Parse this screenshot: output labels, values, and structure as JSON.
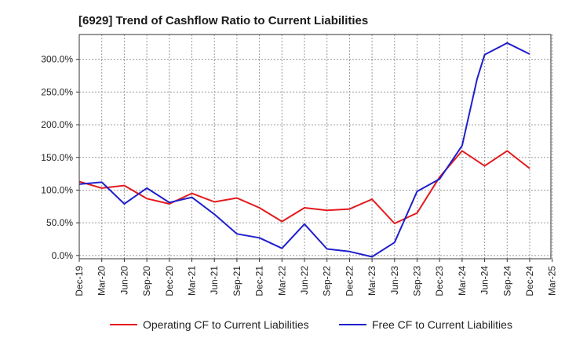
{
  "chart_data": {
    "type": "line",
    "title": "[6929]  Trend of Cashflow Ratio to Current Liabilities",
    "xlabel": "",
    "ylabel": "",
    "x_tick_labels": [
      "Dec-19",
      "Mar-20",
      "Jun-20",
      "Sep-20",
      "Dec-20",
      "Mar-21",
      "Jun-21",
      "Sep-21",
      "Dec-21",
      "Mar-22",
      "Jun-22",
      "Sep-22",
      "Dec-22",
      "Mar-23",
      "Jun-23",
      "Sep-23",
      "Dec-23",
      "Mar-24",
      "Jun-24",
      "Sep-24",
      "Dec-24",
      "Mar-25"
    ],
    "y_ticks": [
      0,
      50,
      100,
      150,
      200,
      250,
      300
    ],
    "y_tick_labels": [
      "0.0%",
      "50.0%",
      "100.0%",
      "150.0%",
      "200.0%",
      "250.0%",
      "300.0%"
    ],
    "ylim": [
      -5,
      338
    ],
    "grid": true,
    "legend_position": "bottom",
    "series": [
      {
        "name": "Operating CF to Current Liabilities",
        "color": "#e31a1c",
        "x": [
          "Dec-19",
          "Mar-20",
          "Jun-20",
          "Sep-20",
          "Dec-20",
          "Mar-21",
          "Jun-21",
          "Sep-21",
          "Dec-21",
          "Mar-22",
          "Jun-22",
          "Sep-22",
          "Dec-22",
          "Mar-23",
          "Jun-23",
          "Sep-23",
          "Dec-23",
          "Mar-24",
          "Jun-24",
          "Sep-24",
          "Dec-24"
        ],
        "values": [
          113,
          103,
          107,
          87,
          79,
          95,
          82,
          88,
          73,
          52,
          73,
          69,
          71,
          86,
          49,
          65,
          120,
          160,
          137,
          160,
          133
        ]
      },
      {
        "name": "Free CF to Current Liabilities",
        "color": "#1f1fcc",
        "x": [
          "Dec-19",
          "Mar-20",
          "Jun-20",
          "Sep-20",
          "Dec-20",
          "Mar-21",
          "Jun-21",
          "Sep-21",
          "Dec-21",
          "Mar-22",
          "Jun-22",
          "Sep-22",
          "Dec-22",
          "Mar-23",
          "Jun-23",
          "Sep-23",
          "Dec-23",
          "Mar-24",
          "May-24",
          "Jun-24",
          "Sep-24",
          "Dec-24"
        ],
        "values": [
          109,
          112,
          79,
          103,
          81,
          89,
          63,
          33,
          27,
          11,
          48,
          10,
          6,
          -2,
          20,
          98,
          117,
          168,
          270,
          307,
          325,
          308
        ]
      }
    ]
  }
}
